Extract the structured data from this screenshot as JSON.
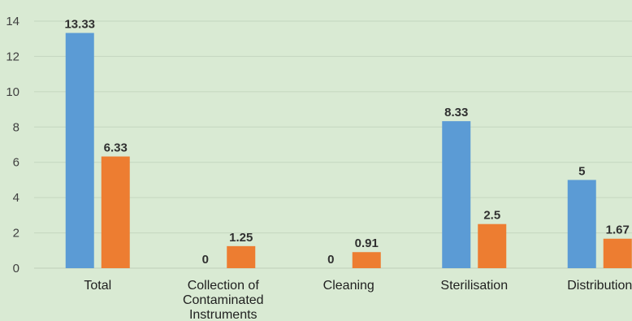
{
  "chart_data": {
    "type": "bar",
    "title": "",
    "xlabel": "",
    "ylabel": "",
    "ylim": [
      0,
      14
    ],
    "yticks": [
      0,
      2,
      4,
      6,
      8,
      10,
      12,
      14
    ],
    "grid": true,
    "legend": "none",
    "categories": [
      [
        "Total"
      ],
      [
        "Collection of",
        "Contaminated",
        "Instruments"
      ],
      [
        "Cleaning"
      ],
      [
        "Sterilisation"
      ],
      [
        "Distribution"
      ]
    ],
    "series": [
      {
        "values": [
          13.33,
          0,
          0,
          8.33,
          5
        ],
        "labels": [
          "13.33",
          "0",
          "0",
          "8.33",
          "5"
        ],
        "color": "#5b9bd5"
      },
      {
        "values": [
          6.33,
          1.25,
          0.91,
          2.5,
          1.67
        ],
        "labels": [
          "6.33",
          "1.25",
          "0.91",
          "2.5",
          "1.67"
        ],
        "color": "#ed7d31"
      }
    ]
  }
}
